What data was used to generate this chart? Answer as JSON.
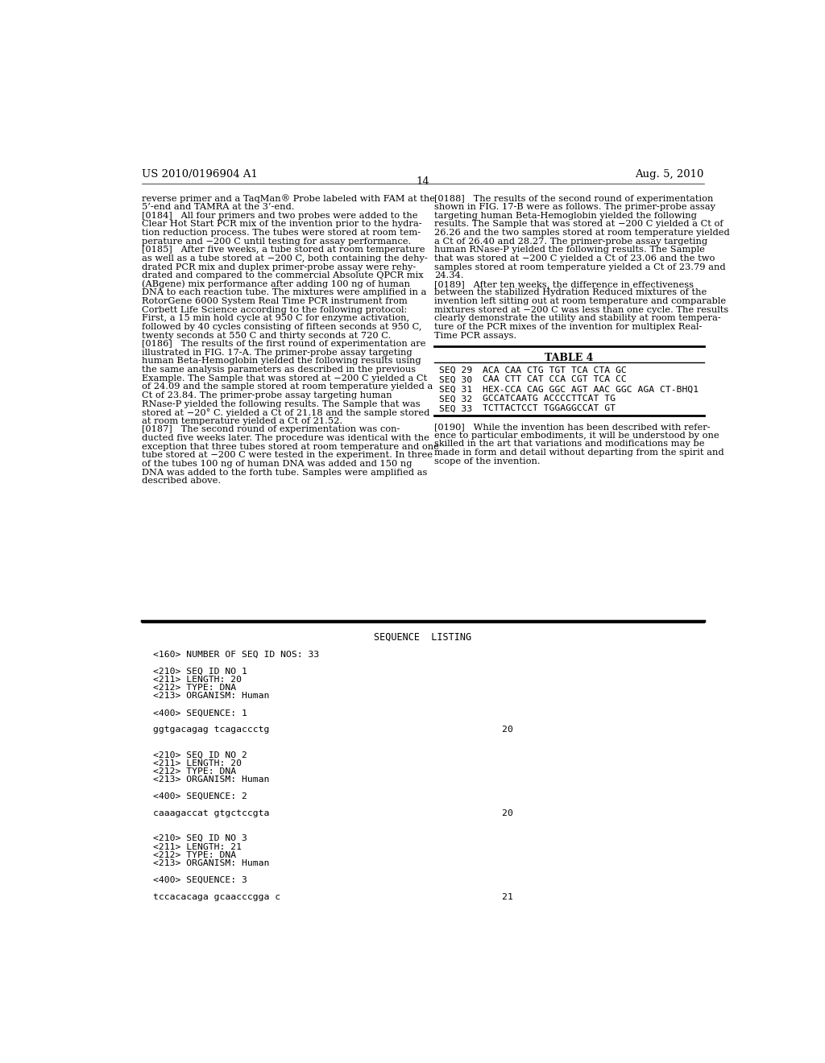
{
  "header_left": "US 2010/0196904 A1",
  "header_right": "Aug. 5, 2010",
  "page_number": "14",
  "background_color": "#ffffff",
  "text_color": "#000000",
  "left_column_text": [
    "reverse primer and a TaqMan® Probe labeled with FAM at the",
    "5’-end and TAMRA at the 3’-end.",
    "[0184]   All four primers and two probes were added to the",
    "Clear Hot Start PCR mix of the invention prior to the hydra-",
    "tion reduction process. The tubes were stored at room tem-",
    "perature and −200 C until testing for assay performance.",
    "[0185]   After five weeks, a tube stored at room temperature",
    "as well as a tube stored at −200 C, both containing the dehy-",
    "drated PCR mix and duplex primer-probe assay were rehy-",
    "drated and compared to the commercial Absolute QPCR mix",
    "(ABgene) mix performance after adding 100 ng of human",
    "DNA to each reaction tube. The mixtures were amplified in a",
    "RotorGene 6000 System Real Time PCR instrument from",
    "Corbett Life Science according to the following protocol:",
    "First, a 15 min hold cycle at 950 C for enzyme activation,",
    "followed by 40 cycles consisting of fifteen seconds at 950 C,",
    "twenty seconds at 550 C and thirty seconds at 720 C.",
    "[0186]   The results of the first round of experimentation are",
    "illustrated in FIG. 17-A. The primer-probe assay targeting",
    "human Beta-Hemoglobin yielded the following results using",
    "the same analysis parameters as described in the previous",
    "Example. The Sample that was stored at −200 C yielded a Ct",
    "of 24.09 and the sample stored at room temperature yielded a",
    "Ct of 23.84. The primer-probe assay targeting human",
    "RNase-P yielded the following results. The Sample that was",
    "stored at −20° C. yielded a Ct of 21.18 and the sample stored",
    "at room temperature yielded a Ct of 21.52.",
    "[0187]   The second round of experimentation was con-",
    "ducted five weeks later. The procedure was identical with the",
    "exception that three tubes stored at room temperature and one",
    "tube stored at −200 C were tested in the experiment. In three",
    "of the tubes 100 ng of human DNA was added and 150 ng",
    "DNA was added to the forth tube. Samples were amplified as",
    "described above."
  ],
  "right_column_text": [
    "[0188]   The results of the second round of experimentation",
    "shown in FIG. 17-B were as follows. The primer-probe assay",
    "targeting human Beta-Hemoglobin yielded the following",
    "results. The Sample that was stored at −200 C yielded a Ct of",
    "26.26 and the two samples stored at room temperature yielded",
    "a Ct of 26.40 and 28.27. The primer-probe assay targeting",
    "human RNase-P yielded the following results. The Sample",
    "that was stored at −200 C yielded a Ct of 23.06 and the two",
    "samples stored at room temperature yielded a Ct of 23.79 and",
    "24.34.",
    "[0189]   After ten weeks, the difference in effectiveness",
    "between the stabilized Hydration Reduced mixtures of the",
    "invention left sitting out at room temperature and comparable",
    "mixtures stored at −200 C was less than one cycle. The results",
    "clearly demonstrate the utility and stability at room tempera-",
    "ture of the PCR mixes of the invention for multiplex Real-",
    "Time PCR assays."
  ],
  "table4_title": "TABLE 4",
  "table4_rows": [
    {
      "seq": "SEQ 29",
      "sequence": "ACA CAA CTG TGT TCA CTA GC"
    },
    {
      "seq": "SEQ 30",
      "sequence": "CAA CTT CAT CCA CGT TCA CC"
    },
    {
      "seq": "SEQ 31",
      "sequence": "HEX-CCA CAG GGC AGT AAC GGC AGA CT-BHQ1"
    },
    {
      "seq": "SEQ 32",
      "sequence": "GCCATCAATG ACCCCTTCAT TG"
    },
    {
      "seq": "SEQ 33",
      "sequence": "TCTTACTCCT TGGAGGCCAT GT"
    }
  ],
  "p190_lines": [
    "[0190]   While the invention has been described with refer-",
    "ence to particular embodiments, it will be understood by one",
    "skilled in the art that variations and modifications may be",
    "made in form and detail without departing from the spirit and",
    "scope of the invention."
  ],
  "sequence_listing_header": "SEQUENCE  LISTING",
  "seq_listing_lines": [
    "<160> NUMBER OF SEQ ID NOS: 33",
    "",
    "<210> SEQ ID NO 1",
    "<211> LENGTH: 20",
    "<212> TYPE: DNA",
    "<213> ORGANISM: Human",
    "",
    "<400> SEQUENCE: 1",
    "",
    "ggtgacagag tcagaccctg                                          20",
    "",
    "",
    "<210> SEQ ID NO 2",
    "<211> LENGTH: 20",
    "<212> TYPE: DNA",
    "<213> ORGANISM: Human",
    "",
    "<400> SEQUENCE: 2",
    "",
    "caaagaccat gtgctccgta                                          20",
    "",
    "",
    "<210> SEQ ID NO 3",
    "<211> LENGTH: 21",
    "<212> TYPE: DNA",
    "<213> ORGANISM: Human",
    "",
    "<400> SEQUENCE: 3",
    "",
    "tccacacaga gcaacccgga c                                        21"
  ]
}
